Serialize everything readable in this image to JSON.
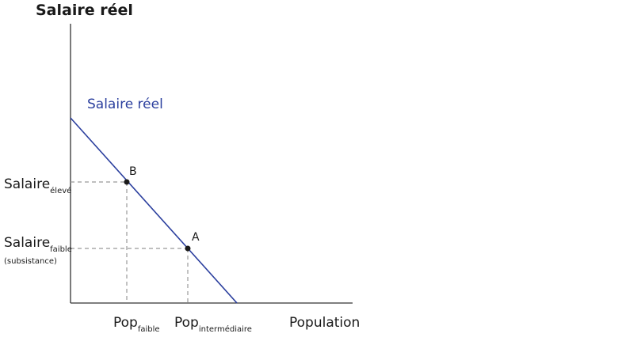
{
  "title": "Salaire réel",
  "curve": {
    "label": "Salaire réel"
  },
  "points": [
    {
      "label": "B"
    },
    {
      "label": "A"
    }
  ],
  "y_labels": [
    {
      "main": "Salaire",
      "sub": "élevé"
    },
    {
      "main": "Salaire",
      "sub": "faible",
      "note": "(subsistance)"
    }
  ],
  "x_labels": [
    {
      "main": "Pop",
      "sub": "faible"
    },
    {
      "main": "Pop",
      "sub": "intermédiaire"
    }
  ],
  "x_axis_label": "Population"
}
